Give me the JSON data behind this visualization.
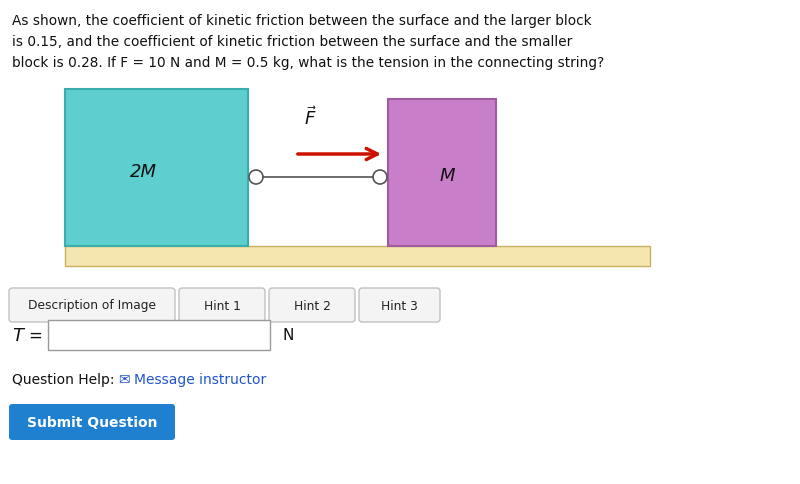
{
  "bg_color": "#ffffff",
  "question_text_line1": "As shown, the coefficient of kinetic friction between the surface and the larger block",
  "question_text_line2": "is 0.15, and the coefficient of kinetic friction between the surface and the smaller",
  "question_text_line3": "block is 0.28. If F = 10 N and M = 0.5 kg, what is the tension in the connecting string?",
  "large_block_color": "#5ecece",
  "large_block_border": "#3aadad",
  "small_block_color": "#c87ec8",
  "small_block_border": "#a05aa0",
  "ground_color": "#f5e6b0",
  "ground_border": "#c8b060",
  "arrow_color": "#cc1100",
  "string_color": "#555555",
  "label_2M": "2M",
  "label_M": "M",
  "hint_buttons": [
    "Description of Image",
    "Hint 1",
    "Hint 2",
    "Hint 3"
  ],
  "T_label": "T",
  "N_label": "N",
  "question_help_text": "Question Help:",
  "message_instructor": "Message instructor",
  "submit_text": "Submit Question",
  "submit_bg": "#2080d0",
  "submit_text_color": "#ffffff",
  "link_color": "#2255cc",
  "text_color": "#111111"
}
